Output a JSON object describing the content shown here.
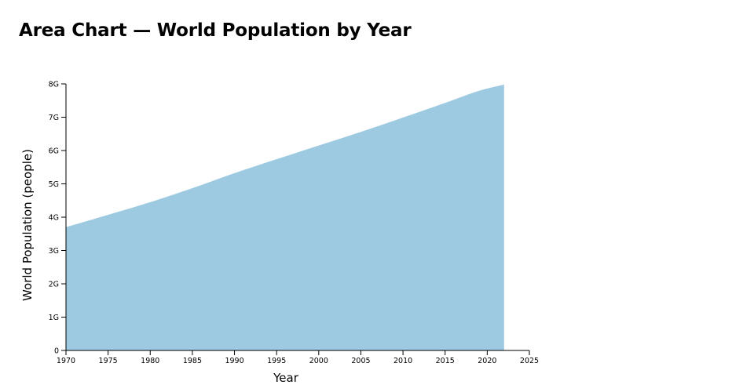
{
  "chart_data": {
    "type": "area",
    "title": "Area Chart — World Population by Year",
    "xlabel": "Year",
    "ylabel": "World Population (people)",
    "xlim": [
      1970,
      2025
    ],
    "ylim": [
      0,
      8000000000
    ],
    "x_ticks": [
      1970,
      1975,
      1980,
      1985,
      1990,
      1995,
      2000,
      2005,
      2010,
      2015,
      2020,
      2025
    ],
    "y_ticks": [
      0,
      1000000000,
      2000000000,
      3000000000,
      4000000000,
      5000000000,
      6000000000,
      7000000000,
      8000000000
    ],
    "x_tick_labels": [
      "1970",
      "1975",
      "1980",
      "1985",
      "1990",
      "1995",
      "2000",
      "2005",
      "2010",
      "2015",
      "2020",
      "2025"
    ],
    "y_tick_labels": [
      "0",
      "1G",
      "2G",
      "3G",
      "4G",
      "5G",
      "6G",
      "7G",
      "8G"
    ],
    "grid": false,
    "fill_color": "#9ecae1",
    "series": [
      {
        "x": [
          1970,
          1975,
          1980,
          1985,
          1990,
          1995,
          2000,
          2005,
          2010,
          2015,
          2019,
          2022
        ],
        "values": [
          3700000000,
          4070000000,
          4450000000,
          4870000000,
          5320000000,
          5740000000,
          6150000000,
          6560000000,
          6990000000,
          7430000000,
          7790000000,
          7980000000
        ]
      }
    ]
  }
}
